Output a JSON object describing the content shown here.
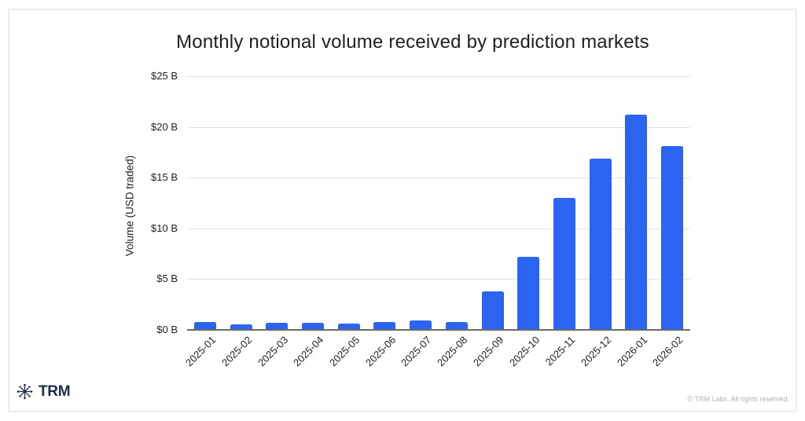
{
  "figure": {
    "title": "Monthly notional volume received by prediction markets",
    "footer": {
      "brand": "TRM",
      "copyright": "© TRM Labs. All rights reserved."
    }
  },
  "chart_data": {
    "type": "bar",
    "title": "Monthly notional volume received by prediction markets",
    "xlabel": "",
    "ylabel": "Volume (USD traded)",
    "unit": "USD billions",
    "categories": [
      "2025-01",
      "2025-02",
      "2025-03",
      "2025-04",
      "2025-05",
      "2025-06",
      "2025-07",
      "2025-08",
      "2025-09",
      "2025-10",
      "2025-11",
      "2025-12",
      "2026-01",
      "2026-02"
    ],
    "values": [
      0.7,
      0.45,
      0.6,
      0.6,
      0.55,
      0.7,
      0.85,
      0.7,
      3.7,
      7.1,
      12.9,
      16.8,
      21.1,
      18.0
    ],
    "ylim": [
      0,
      25
    ],
    "yticks": [
      0,
      5,
      10,
      15,
      20,
      25
    ],
    "ytick_labels": [
      "$0 B",
      "$5 B",
      "$10 B",
      "$15 B",
      "$20 B",
      "$25 B"
    ],
    "grid": true,
    "legend_position": "none",
    "x_tick_rotation_deg": 45
  },
  "colors": {
    "bar": "#2b64f0",
    "gridline": "#e2e2e2",
    "axis_baseline": "#6a6a6a",
    "brand_navy": "#1b2b4d",
    "copyright_gray": "#b3b3b3"
  }
}
